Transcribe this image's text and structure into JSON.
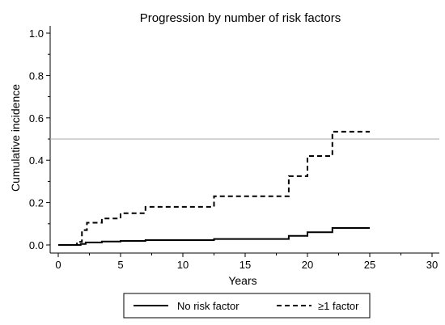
{
  "chart_data": {
    "type": "line",
    "title": "Progression by number of risk factors",
    "xlabel": "Years",
    "ylabel": "Cumulative incidence",
    "xlim": [
      0,
      30
    ],
    "ylim": [
      0,
      1.0
    ],
    "x_ticks": [
      0,
      5,
      10,
      15,
      20,
      25,
      30
    ],
    "y_ticks": [
      0.0,
      0.2,
      0.4,
      0.6,
      0.8,
      1.0
    ],
    "x_tick_labels": [
      "0",
      "5",
      "10",
      "15",
      "20",
      "25",
      "30"
    ],
    "y_tick_labels": [
      "0.0",
      "0.2",
      "0.4",
      "0.6",
      "0.8",
      "1.0"
    ],
    "y_minor_ticks": [
      0.1,
      0.3,
      0.5,
      0.7,
      0.9
    ],
    "x_minor_ticks": [
      2.5,
      7.5,
      12.5,
      17.5,
      22.5,
      27.5
    ],
    "reference_line_y": 0.5,
    "reference_line_color": "#aaaaaa",
    "legend_position": "bottom",
    "series": [
      {
        "name": "No risk factor",
        "style": "solid",
        "color": "#000000",
        "x": [
          0,
          1.8,
          2.2,
          3.5,
          5,
          7,
          12.5,
          18.5,
          20,
          22,
          25
        ],
        "y": [
          0,
          0.005,
          0.012,
          0.016,
          0.019,
          0.023,
          0.028,
          0.043,
          0.06,
          0.08,
          0.08
        ]
      },
      {
        "name": "≥1 factor",
        "style": "dashed",
        "color": "#000000",
        "x": [
          0,
          1.5,
          1.9,
          2.3,
          3.5,
          5,
          7,
          12.5,
          18.5,
          20,
          22,
          25
        ],
        "y": [
          0,
          0.015,
          0.07,
          0.105,
          0.125,
          0.15,
          0.18,
          0.23,
          0.325,
          0.42,
          0.535,
          0.535
        ]
      }
    ]
  }
}
